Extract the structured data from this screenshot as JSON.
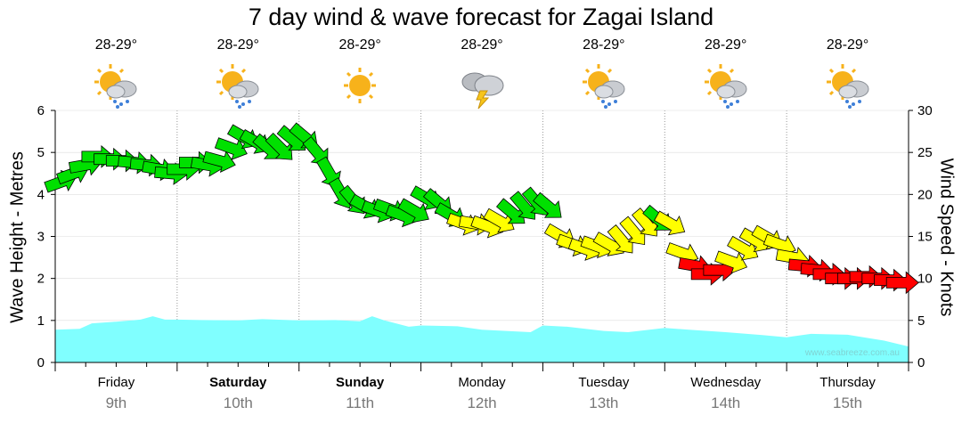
{
  "title": "7 day wind & wave forecast for Zagai Island",
  "credit": "www.seabreeze.com.au",
  "days": [
    {
      "name": "Friday",
      "date": "9th",
      "bold": false,
      "temp": "28-29°",
      "icon": "sun-cloud-rain-icon"
    },
    {
      "name": "Saturday",
      "date": "10th",
      "bold": true,
      "temp": "28-29°",
      "icon": "sun-cloud-rain-icon"
    },
    {
      "name": "Sunday",
      "date": "11th",
      "bold": true,
      "temp": "28-29°",
      "icon": "sun-icon"
    },
    {
      "name": "Monday",
      "date": "12th",
      "bold": false,
      "temp": "28-29°",
      "icon": "cloud-storm-icon"
    },
    {
      "name": "Tuesday",
      "date": "13th",
      "bold": false,
      "temp": "28-29°",
      "icon": "sun-cloud-rain-icon"
    },
    {
      "name": "Wednesday",
      "date": "14th",
      "bold": false,
      "temp": "28-29°",
      "icon": "sun-cloud-rain-icon"
    },
    {
      "name": "Thursday",
      "date": "15th",
      "bold": false,
      "temp": "28-29°",
      "icon": "sun-cloud-rain-icon"
    }
  ],
  "colors": {
    "wave_fill": "#80ffff",
    "wind_low": "#ff0000",
    "wind_mid": "#ffff00",
    "wind_high": "#00e000",
    "grid": "#999999"
  },
  "chart_data": {
    "type": "area",
    "title": "7 day wind & wave forecast for Zagai Island",
    "ylabel_left": "Wave Height - Metres",
    "ylabel_right": "Wind Speed - Knots",
    "ylim_left": [
      0,
      6
    ],
    "ylim_right": [
      0,
      30
    ],
    "yticks_left": [
      0,
      1,
      2,
      3,
      4,
      5,
      6
    ],
    "yticks_right": [
      0,
      5,
      10,
      15,
      20,
      25,
      30
    ],
    "grid": true,
    "x_unit": "days from start of Friday 9th",
    "wave_height": {
      "name": "Wave Height",
      "x": [
        0,
        0.2,
        0.3,
        0.5,
        0.7,
        0.8,
        0.9,
        1.0,
        1.2,
        1.5,
        1.7,
        2.0,
        2.3,
        2.5,
        2.6,
        2.7,
        2.9,
        3.0,
        3.3,
        3.5,
        3.9,
        4.0,
        4.2,
        4.5,
        4.7,
        5.0,
        5.2,
        5.5,
        5.8,
        6.0,
        6.2,
        6.5,
        6.8,
        7.0
      ],
      "values": [
        0.78,
        0.8,
        0.93,
        0.97,
        1.02,
        1.1,
        1.02,
        1.02,
        1.01,
        1.0,
        1.03,
        1.0,
        1.01,
        0.98,
        1.1,
        1.0,
        0.85,
        0.88,
        0.86,
        0.78,
        0.72,
        0.88,
        0.85,
        0.75,
        0.72,
        0.82,
        0.78,
        0.72,
        0.65,
        0.6,
        0.68,
        0.66,
        0.52,
        0.38
      ]
    },
    "wind": {
      "name": "Wind Speed",
      "x": [
        0,
        0.1,
        0.2,
        0.3,
        0.4,
        0.5,
        0.6,
        0.7,
        0.8,
        0.9,
        1.0,
        1.1,
        1.2,
        1.3,
        1.4,
        1.5,
        1.6,
        1.7,
        1.8,
        1.9,
        2.0,
        2.1,
        2.2,
        2.3,
        2.4,
        2.5,
        2.6,
        2.7,
        2.8,
        2.9,
        3.0,
        3.1,
        3.2,
        3.3,
        3.4,
        3.5,
        3.6,
        3.7,
        3.8,
        3.9,
        4.0,
        4.1,
        4.2,
        4.3,
        4.4,
        4.5,
        4.6,
        4.7,
        4.8,
        4.9,
        5.0,
        5.1,
        5.2,
        5.3,
        5.4,
        5.5,
        5.6,
        5.7,
        5.8,
        5.9,
        6.0,
        6.1,
        6.2,
        6.3,
        6.4,
        6.5,
        6.6,
        6.7,
        6.8,
        6.9
      ],
      "knots": [
        21.5,
        22.5,
        23.5,
        24.5,
        24.2,
        24.0,
        23.8,
        23.5,
        23.0,
        22.5,
        23.0,
        23.8,
        23.5,
        24.0,
        25.5,
        26.8,
        26.2,
        25.5,
        25.5,
        26.5,
        26.8,
        25.0,
        22.5,
        20.0,
        19.2,
        18.5,
        18.0,
        18.2,
        17.5,
        18.0,
        19.5,
        19.0,
        17.5,
        16.5,
        16.5,
        16.2,
        16.8,
        17.8,
        18.5,
        19.0,
        18.5,
        15.0,
        14.0,
        13.5,
        13.8,
        14.0,
        14.5,
        15.5,
        16.5,
        17.0,
        16.5,
        13.0,
        11.5,
        10.5,
        11.0,
        12.0,
        13.5,
        14.5,
        14.8,
        14.0,
        12.5,
        11.5,
        11.0,
        10.5,
        10.0,
        10.0,
        10.2,
        10.0,
        9.8,
        9.5
      ],
      "direction_deg": [
        250,
        250,
        260,
        270,
        270,
        270,
        275,
        275,
        280,
        275,
        270,
        270,
        280,
        285,
        290,
        300,
        300,
        310,
        315,
        310,
        310,
        320,
        330,
        330,
        320,
        300,
        290,
        290,
        290,
        300,
        300,
        310,
        300,
        290,
        280,
        290,
        300,
        310,
        320,
        320,
        310,
        300,
        290,
        290,
        290,
        300,
        320,
        320,
        320,
        310,
        300,
        290,
        280,
        270,
        270,
        290,
        300,
        300,
        300,
        290,
        280,
        275,
        275,
        270,
        270,
        270,
        270,
        270,
        270,
        270
      ]
    }
  }
}
